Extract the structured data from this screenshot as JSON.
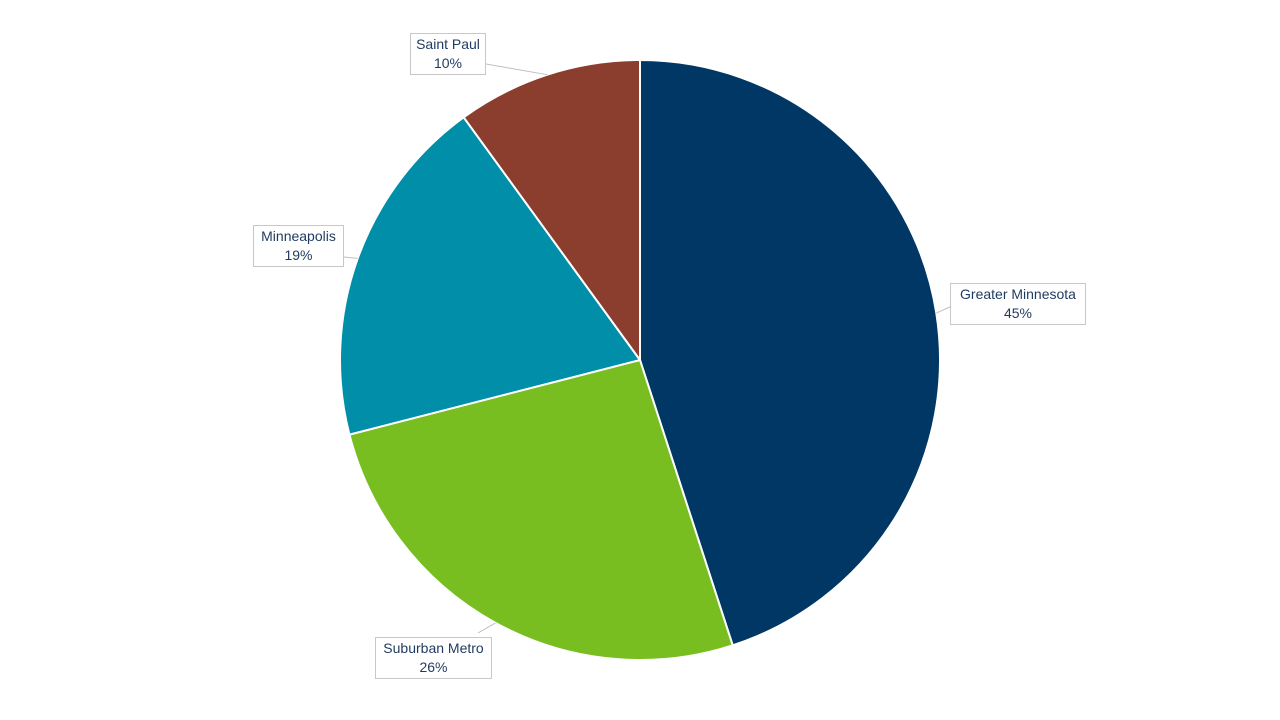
{
  "chart_data": {
    "type": "pie",
    "title": "",
    "slices": [
      {
        "label": "Greater Minnesota",
        "value": 45,
        "display": "45%",
        "color": "#003764"
      },
      {
        "label": "Suburban Metro",
        "value": 26,
        "display": "26%",
        "color": "#78be21"
      },
      {
        "label": "Minneapolis",
        "value": 19,
        "display": "19%",
        "color": "#008ea9"
      },
      {
        "label": "Saint Paul",
        "value": 10,
        "display": "10%",
        "color": "#8b3d2e"
      }
    ],
    "start_angle_deg": 0,
    "direction": "clockwise",
    "slice_border_color": "#ffffff",
    "label_style": "callout",
    "legend": "none"
  }
}
